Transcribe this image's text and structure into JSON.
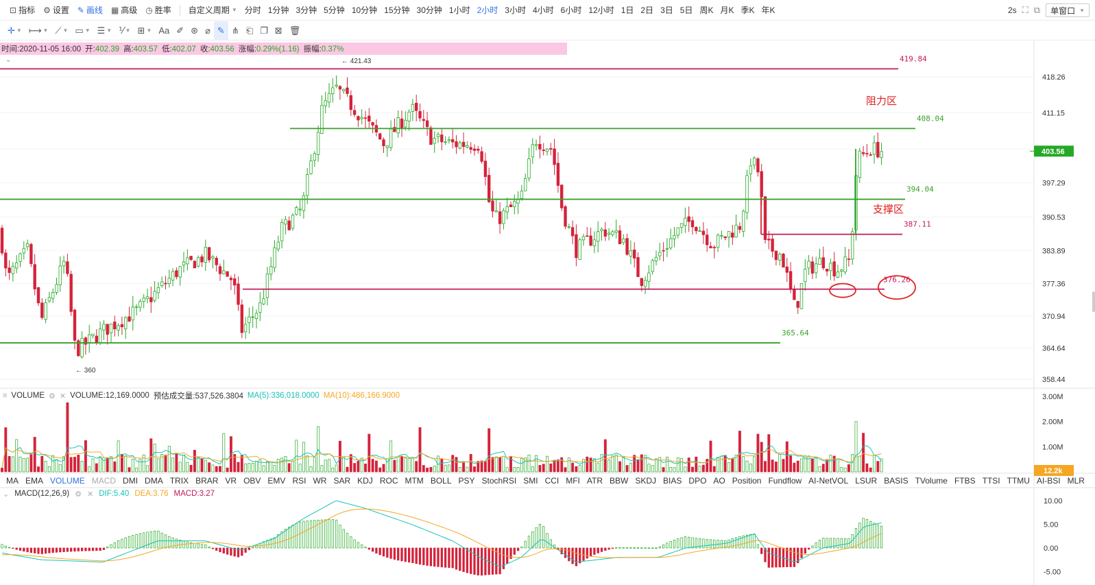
{
  "toolbar": {
    "tools": [
      {
        "label": "指标",
        "icon": "indicator-icon"
      },
      {
        "label": "设置",
        "icon": "gear-icon"
      },
      {
        "label": "画线",
        "icon": "pen-icon",
        "active": true
      },
      {
        "label": "高级",
        "icon": "calendar-icon"
      },
      {
        "label": "胜率",
        "icon": "clock-icon"
      }
    ],
    "custom_period_label": "自定义周期",
    "periods": [
      "分时",
      "1分钟",
      "3分钟",
      "5分钟",
      "10分钟",
      "15分钟",
      "30分钟",
      "1小时",
      "2小时",
      "3小时",
      "4小时",
      "6小时",
      "12小时",
      "1日",
      "2日",
      "3日",
      "5日",
      "周K",
      "月K",
      "季K",
      "年K"
    ],
    "active_period": "2小时",
    "refresh_label": "2s",
    "window_mode_label": "单窗口"
  },
  "drawing_tools": [
    "crosshair-icon",
    "horizontal-line-icon",
    "trend-line-icon",
    "rectangle-icon",
    "parallel-channel-icon",
    "fib-icon",
    "measure-icon",
    "text-icon",
    "brush-icon",
    "magnet-icon",
    "ruler-icon",
    "draw-mode-icon",
    "lock-icon",
    "visibility-icon",
    "copy-icon",
    "screenshot-icon",
    "trash-icon"
  ],
  "drawing_text_label": "Aa",
  "info": {
    "time_label": "时间:",
    "time": "2020-11-05 16:00",
    "open_label": "开:",
    "open": "402.39",
    "high_label": "高:",
    "high": "403.57",
    "low_label": "低:",
    "low": "402.07",
    "close_label": "收:",
    "close": "403.56",
    "change_label": "涨幅:",
    "change": "0.29%(1.16)",
    "amplitude_label": "振幅:",
    "amplitude": "0.37%"
  },
  "chart_data": {
    "type": "candlestick",
    "y_axis_ticks": [
      418.26,
      411.15,
      404.0,
      397.29,
      390.53,
      383.89,
      377.36,
      370.94,
      364.64,
      358.44
    ],
    "ylim": [
      356.0,
      425.0
    ],
    "current_price": "403.56",
    "high_marker": "421.43",
    "low_marker": "360",
    "horizontal_lines": [
      {
        "value": 419.84,
        "label": "419.84",
        "color": "#c2185b"
      },
      {
        "value": 408.04,
        "label": "408.04",
        "color": "#3aa02b"
      },
      {
        "value": 394.04,
        "label": "394.04",
        "color": "#3aa02b"
      },
      {
        "value": 387.11,
        "label": "387.11",
        "color": "#c2185b"
      },
      {
        "value": 376.26,
        "label": "376.26",
        "color": "#c2185b"
      },
      {
        "value": 365.64,
        "label": "365.64",
        "color": "#3aa02b"
      }
    ],
    "annotations": [
      {
        "text": "阻力区",
        "color": "#e02020"
      },
      {
        "text": "支撑区",
        "color": "#e02020"
      }
    ],
    "colors": {
      "up": "#26a826",
      "down": "#d4233b"
    }
  },
  "volume": {
    "name": "VOLUME",
    "value_label": "VOLUME:12,169.0000",
    "estimate_label": "预估成交量:537,526.3804",
    "ma5_label": "MA(5):336,018.0000",
    "ma10_label": "MA(10):486,166.9000",
    "y_ticks": [
      "3.00M",
      "2.00M",
      "1.00M"
    ],
    "current_label": "12.2k"
  },
  "indicator_tabs": [
    "MA",
    "EMA",
    "VOLUME",
    "MACD",
    "DMI",
    "DMA",
    "TRIX",
    "BRAR",
    "VR",
    "OBV",
    "EMV",
    "RSI",
    "WR",
    "SAR",
    "KDJ",
    "ROC",
    "MTM",
    "BOLL",
    "PSY",
    "StochRSI",
    "SMI",
    "CCI",
    "MFI",
    "ATR",
    "BBW",
    "SKDJ",
    "BIAS",
    "DPO",
    "AO",
    "Position",
    "Fundflow",
    "AI-NetVOL",
    "LSUR",
    "BASIS",
    "TVolume",
    "FTBS",
    "TTSI",
    "TTMU",
    "AI-BSI",
    "MLR"
  ],
  "active_indicator": "VOLUME",
  "dim_indicator": "MACD",
  "macd": {
    "name": "MACD(12,26,9)",
    "dif_label": "DIF:5.40",
    "dea_label": "DEA:3.76",
    "macd_label": "MACD:3.27",
    "y_ticks": [
      "10.00",
      "5.00",
      "0.00",
      "-5.00"
    ]
  }
}
